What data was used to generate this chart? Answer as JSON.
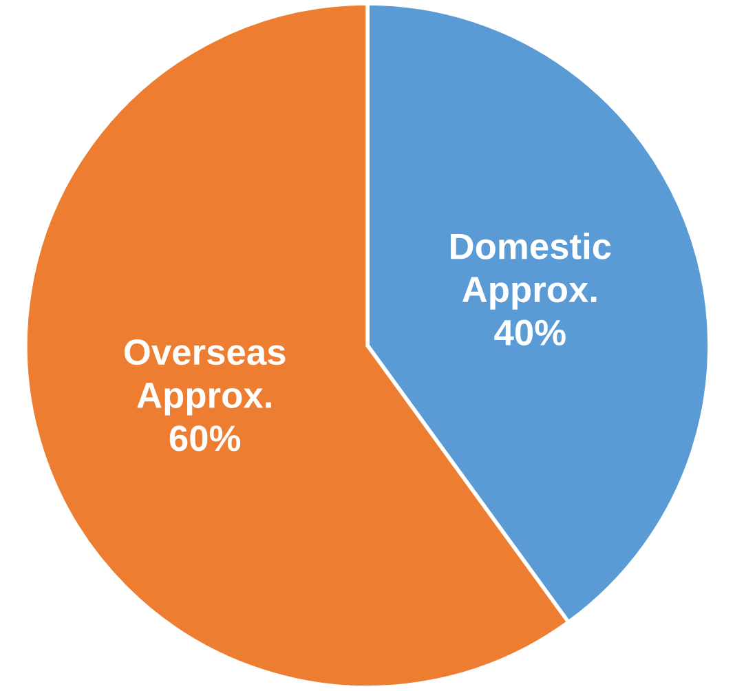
{
  "chart_data": {
    "type": "pie",
    "categories": [
      "Domestic",
      "Overseas"
    ],
    "values": [
      40,
      60
    ],
    "value_labels": [
      "Approx.\n40%",
      "Approx.\n60%"
    ],
    "colors": [
      "#5b9bd5",
      "#ed7d31"
    ],
    "legend": false
  }
}
